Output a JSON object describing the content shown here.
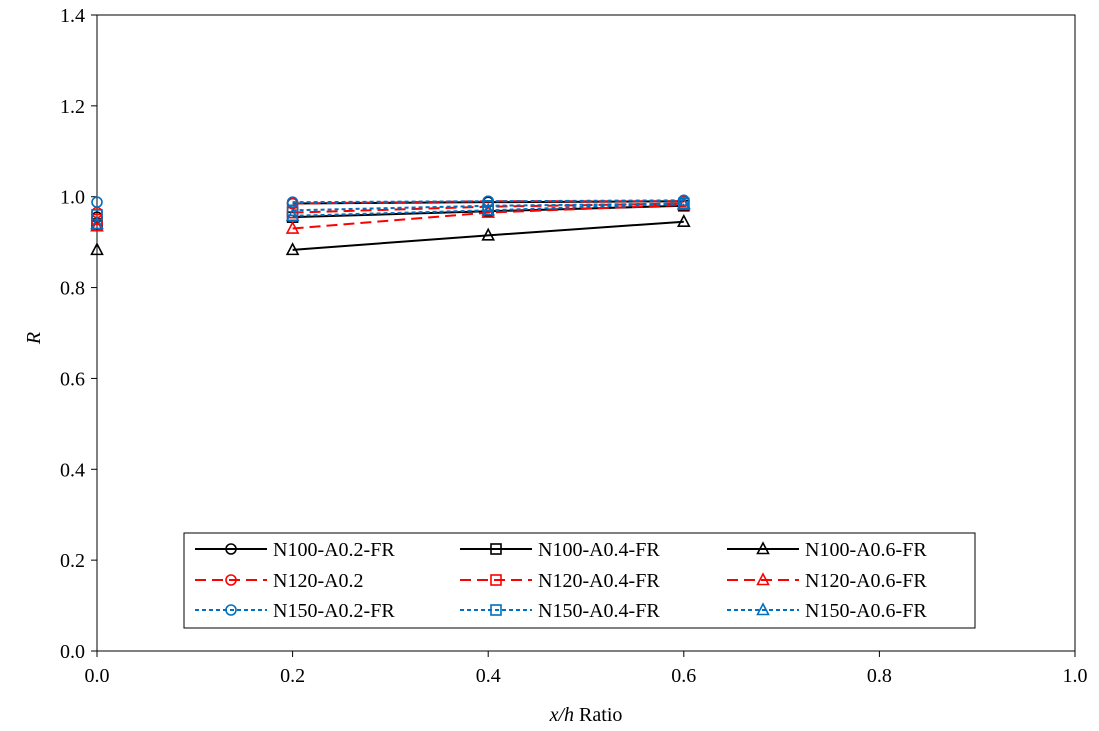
{
  "chart_data": {
    "type": "line",
    "title": "",
    "xlabel": {
      "var": "x/h",
      "rest": " Ratio"
    },
    "ylabel": "R",
    "xlim": [
      0.0,
      1.0
    ],
    "ylim": [
      0.0,
      1.4
    ],
    "xticks": [
      "0.0",
      "0.2",
      "0.4",
      "0.6",
      "0.8",
      "1.0"
    ],
    "yticks": [
      "0.0",
      "0.2",
      "0.4",
      "0.6",
      "0.8",
      "1.0",
      "1.2",
      "1.4"
    ],
    "grid": false,
    "legend_position": "bottom-center",
    "series": [
      {
        "name": "N100-A0.2-FR",
        "marker": "circle",
        "color": "#000000",
        "dash": "solid",
        "x": [
          0.0,
          0.2,
          0.4,
          0.6
        ],
        "y": [
          0.955,
          0.985,
          0.988,
          0.99
        ]
      },
      {
        "name": "N100-A0.4-FR",
        "marker": "square",
        "color": "#000000",
        "dash": "solid",
        "x": [
          0.0,
          0.2,
          0.4,
          0.6
        ],
        "y": [
          0.94,
          0.955,
          0.968,
          0.98
        ]
      },
      {
        "name": "N100-A0.6-FR",
        "marker": "triangle",
        "color": "#000000",
        "dash": "solid",
        "x": [
          0.0,
          0.2,
          0.4,
          0.6
        ],
        "y": [
          0.883,
          0.883,
          0.915,
          0.945
        ]
      },
      {
        "name": "N120-A0.2",
        "marker": "circle",
        "color": "#ff0000",
        "dash": "long",
        "x": [
          0.0,
          0.2,
          0.4,
          0.6
        ],
        "y": [
          0.965,
          0.985,
          0.99,
          0.99
        ]
      },
      {
        "name": "N120-A0.4-FR",
        "marker": "square",
        "color": "#ff0000",
        "dash": "long",
        "x": [
          0.0,
          0.2,
          0.4,
          0.6
        ],
        "y": [
          0.95,
          0.965,
          0.978,
          0.985
        ]
      },
      {
        "name": "N120-A0.6-FR",
        "marker": "triangle",
        "color": "#ff0000",
        "dash": "long",
        "x": [
          0.0,
          0.2,
          0.4,
          0.6
        ],
        "y": [
          0.935,
          0.93,
          0.965,
          0.982
        ]
      },
      {
        "name": "N150-A0.2-FR",
        "marker": "circle",
        "color": "#0070c0",
        "dash": "short",
        "x": [
          0.0,
          0.2,
          0.4,
          0.6
        ],
        "y": [
          0.988,
          0.988,
          0.99,
          0.992
        ]
      },
      {
        "name": "N150-A0.4-FR",
        "marker": "square",
        "color": "#0070c0",
        "dash": "short",
        "x": [
          0.0,
          0.2,
          0.4,
          0.6
        ],
        "y": [
          0.96,
          0.97,
          0.98,
          0.985
        ]
      },
      {
        "name": "N150-A0.6-FR",
        "marker": "triangle",
        "color": "#0070c0",
        "dash": "short",
        "x": [
          0.0,
          0.2,
          0.4,
          0.6
        ],
        "y": [
          0.94,
          0.958,
          0.97,
          0.985
        ]
      }
    ]
  }
}
